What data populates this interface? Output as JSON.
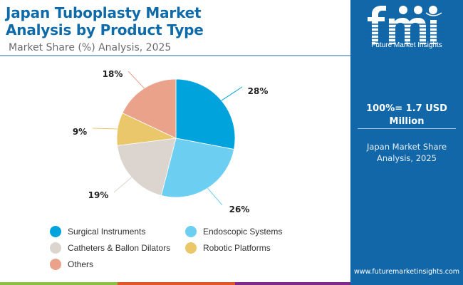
{
  "header": {
    "title_line1": "Japan Tuboplasty Market",
    "title_line2": "Analysis by Product Type",
    "subtitle": "Market Share (%) Analysis, 2025"
  },
  "panel": {
    "logo_letters": "fmi",
    "logo_text": "Future Market Insights",
    "total_line1": "100%= 1.7 USD",
    "total_line2": "Million",
    "sub_line1": "Japan Market Share",
    "sub_line2": "Analysis, 2025",
    "url": "www.futuremarketinsights.com"
  },
  "colors": {
    "brand": "#1167a8",
    "title": "#0e6aa8",
    "bar_green": "#8cc043",
    "bar_orange": "#e2572a",
    "bar_purple": "#7d2a8c"
  },
  "chart_data": {
    "type": "pie",
    "title": "Japan Tuboplasty Market Analysis by Product Type",
    "subtitle": "Market Share (%) Analysis, 2025",
    "start_angle": "12 o'clock, clockwise",
    "legend_position": "bottom",
    "slices": [
      {
        "label": "Surgical Instruments",
        "value": 28,
        "display": "28%",
        "color": "#00a3dc"
      },
      {
        "label": "Endoscopic Systems",
        "value": 26,
        "display": "26%",
        "color": "#6ccff2"
      },
      {
        "label": "Catheters & Ballon Dilators",
        "value": 19,
        "display": "19%",
        "color": "#dcd4cf"
      },
      {
        "label": "Robotic Platforms",
        "value": 9,
        "display": "9%",
        "color": "#eac76a"
      },
      {
        "label": "Others",
        "value": 18,
        "display": "18%",
        "color": "#eba28b"
      }
    ]
  }
}
